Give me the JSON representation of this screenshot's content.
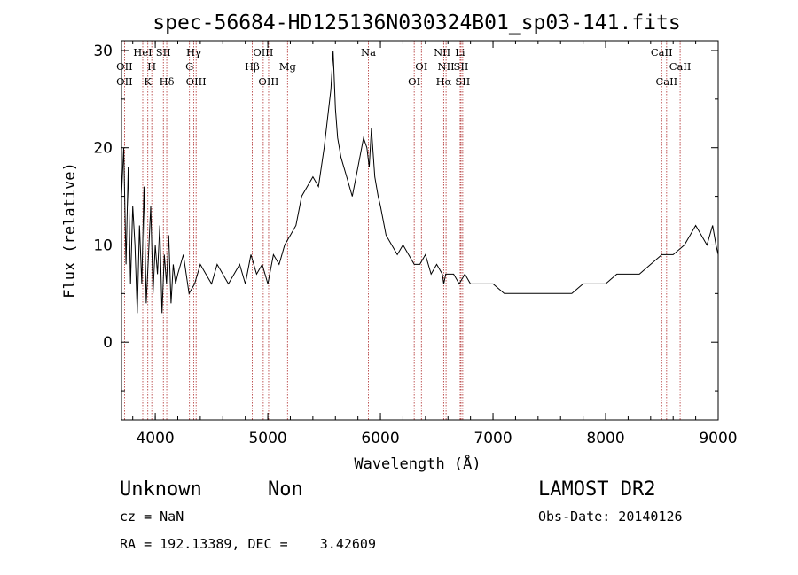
{
  "chart_data": {
    "type": "line",
    "title": "spec-56684-HD125136N030324B01_sp03-141.fits",
    "xlabel": "Wavelength (Å)",
    "ylabel": "Flux (relative)",
    "xlim": [
      3700,
      9000
    ],
    "ylim": [
      -8,
      31
    ],
    "xticks": [
      4000,
      5000,
      6000,
      7000,
      8000,
      9000
    ],
    "yticks": [
      0,
      10,
      20,
      30
    ],
    "grid": false,
    "line_color": "#000000",
    "marker_color": "#b03030",
    "series": [
      {
        "x": [
          3700,
          3720,
          3740,
          3760,
          3780,
          3800,
          3820,
          3840,
          3860,
          3880,
          3900,
          3920,
          3940,
          3960,
          3980,
          4000,
          4020,
          4040,
          4060,
          4080,
          4100,
          4120,
          4140,
          4160,
          4180,
          4200,
          4250,
          4300,
          4350,
          4400,
          4450,
          4500,
          4550,
          4600,
          4650,
          4700,
          4750,
          4800,
          4850,
          4900,
          4950,
          5000,
          5050,
          5100,
          5150,
          5200,
          5250,
          5300,
          5350,
          5400,
          5450,
          5500,
          5530,
          5560,
          5580,
          5600,
          5620,
          5650,
          5700,
          5750,
          5800,
          5850,
          5880,
          5900,
          5920,
          5950,
          5980,
          6000,
          6050,
          6100,
          6150,
          6200,
          6250,
          6300,
          6350,
          6400,
          6450,
          6500,
          6550,
          6563,
          6580,
          6600,
          6650,
          6700,
          6750,
          6800,
          6850,
          6900,
          6950,
          7000,
          7100,
          7200,
          7300,
          7400,
          7500,
          7600,
          7700,
          7800,
          7900,
          8000,
          8100,
          8200,
          8300,
          8400,
          8500,
          8600,
          8700,
          8750,
          8800,
          8850,
          8900,
          8950,
          8980,
          9000
        ],
        "y": [
          15,
          20,
          8,
          18,
          6,
          14,
          10,
          3,
          12,
          6,
          16,
          4,
          9,
          14,
          5,
          10,
          7,
          12,
          3,
          9,
          6,
          11,
          4,
          8,
          6,
          7,
          9,
          5,
          6,
          8,
          7,
          6,
          8,
          7,
          6,
          7,
          8,
          6,
          9,
          7,
          8,
          6,
          9,
          8,
          10,
          11,
          12,
          15,
          16,
          17,
          16,
          20,
          23,
          26,
          30,
          24,
          21,
          19,
          17,
          15,
          18,
          21,
          20,
          18,
          22,
          17,
          15,
          14,
          11,
          10,
          9,
          10,
          9,
          8,
          8,
          9,
          7,
          8,
          7,
          6,
          7,
          7,
          7,
          6,
          7,
          6,
          6,
          6,
          6,
          6,
          5,
          5,
          5,
          5,
          5,
          5,
          5,
          6,
          6,
          6,
          7,
          7,
          7,
          8,
          9,
          9,
          10,
          11,
          12,
          11,
          10,
          12,
          10,
          9
        ]
      }
    ],
    "lines": [
      {
        "lambda": 3727,
        "labels": [
          "OII"
        ],
        "row": 2
      },
      {
        "lambda": 3727,
        "labels": [
          "OII"
        ],
        "row": 3
      },
      {
        "lambda": 3889,
        "labels": [
          "HeI"
        ],
        "row": 1
      },
      {
        "lambda": 3934,
        "labels": [
          "K"
        ],
        "row": 3
      },
      {
        "lambda": 3969,
        "labels": [
          "H"
        ],
        "row": 2
      },
      {
        "lambda": 4072,
        "labels": [
          "SII"
        ],
        "row": 1
      },
      {
        "lambda": 4102,
        "labels": [
          "Hδ"
        ],
        "row": 3
      },
      {
        "lambda": 4304,
        "labels": [
          "G"
        ],
        "row": 2
      },
      {
        "lambda": 4341,
        "labels": [
          "Hγ"
        ],
        "row": 1
      },
      {
        "lambda": 4363,
        "labels": [
          "OIII"
        ],
        "row": 3
      },
      {
        "lambda": 4861,
        "labels": [
          "Hβ"
        ],
        "row": 2
      },
      {
        "lambda": 4959,
        "labels": [
          "OIII"
        ],
        "row": 1
      },
      {
        "lambda": 5007,
        "labels": [
          "OIII"
        ],
        "row": 3
      },
      {
        "lambda": 5175,
        "labels": [
          "Mg"
        ],
        "row": 2
      },
      {
        "lambda": 5893,
        "labels": [
          "Na"
        ],
        "row": 1
      },
      {
        "lambda": 6300,
        "labels": [
          "OI"
        ],
        "row": 3
      },
      {
        "lambda": 6364,
        "labels": [
          "OI"
        ],
        "row": 2
      },
      {
        "lambda": 6548,
        "labels": [
          "NII"
        ],
        "row": 1
      },
      {
        "lambda": 6563,
        "labels": [
          "Hα"
        ],
        "row": 3
      },
      {
        "lambda": 6583,
        "labels": [
          "NII"
        ],
        "row": 2
      },
      {
        "lambda": 6708,
        "labels": [
          "Li"
        ],
        "row": 1
      },
      {
        "lambda": 6716,
        "labels": [
          "SII"
        ],
        "row": 2
      },
      {
        "lambda": 6731,
        "labels": [
          "SII"
        ],
        "row": 3
      },
      {
        "lambda": 8498,
        "labels": [
          "CaII"
        ],
        "row": 1
      },
      {
        "lambda": 8542,
        "labels": [
          "CaII"
        ],
        "row": 3
      },
      {
        "lambda": 8662,
        "labels": [
          "CaII"
        ],
        "row": 2
      }
    ]
  },
  "info": {
    "class": "Unknown",
    "subclass": "Non",
    "survey": "LAMOST DR2",
    "cz": "cz = NaN",
    "obs_date": "Obs-Date: 20140126",
    "coords": "RA = 192.13389, DEC =    3.42609"
  }
}
